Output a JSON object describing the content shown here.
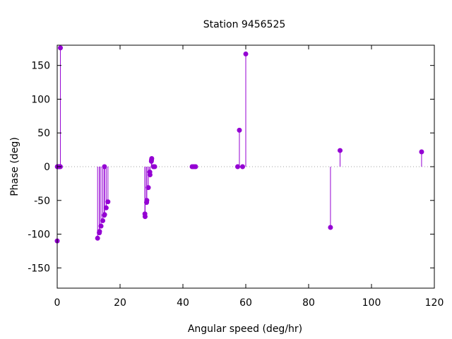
{
  "chart_data": {
    "type": "scatter",
    "style": "impulses-with-points",
    "title": "Station 9456525",
    "xlabel": "Angular speed (deg/hr)",
    "ylabel": "Phase (deg)",
    "xlim": [
      0,
      120
    ],
    "ylim": [
      -180,
      180
    ],
    "xticks": [
      0,
      20,
      40,
      60,
      80,
      100,
      120
    ],
    "yticks": [
      -150,
      -100,
      -50,
      0,
      50,
      100,
      150
    ],
    "grid": false,
    "zero_line": "dotted",
    "series": [
      {
        "color": "#9400d3",
        "points": [
          {
            "x": 0.0,
            "y": -110
          },
          {
            "x": 0.04,
            "y": 0
          },
          {
            "x": 0.08,
            "y": 0
          },
          {
            "x": 0.5,
            "y": 0
          },
          {
            "x": 0.82,
            "y": 0
          },
          {
            "x": 1.0,
            "y": 0
          },
          {
            "x": 1.02,
            "y": 176
          },
          {
            "x": 12.85,
            "y": -106
          },
          {
            "x": 13.4,
            "y": -98
          },
          {
            "x": 13.47,
            "y": -96
          },
          {
            "x": 13.94,
            "y": -88
          },
          {
            "x": 14.5,
            "y": -80
          },
          {
            "x": 14.96,
            "y": -72
          },
          {
            "x": 15.04,
            "y": 0
          },
          {
            "x": 15.08,
            "y": -71
          },
          {
            "x": 15.59,
            "y": -61
          },
          {
            "x": 16.14,
            "y": -52
          },
          {
            "x": 27.9,
            "y": -70
          },
          {
            "x": 27.97,
            "y": -74
          },
          {
            "x": 28.44,
            "y": -53
          },
          {
            "x": 28.51,
            "y": -50
          },
          {
            "x": 28.99,
            "y": -31
          },
          {
            "x": 29.46,
            "y": -8
          },
          {
            "x": 29.53,
            "y": -12
          },
          {
            "x": 29.96,
            "y": 8
          },
          {
            "x": 30.0,
            "y": 10
          },
          {
            "x": 30.08,
            "y": 12
          },
          {
            "x": 30.63,
            "y": 0
          },
          {
            "x": 31.02,
            "y": 0
          },
          {
            "x": 42.93,
            "y": 0
          },
          {
            "x": 43.48,
            "y": 0
          },
          {
            "x": 44.03,
            "y": 0
          },
          {
            "x": 57.42,
            "y": 0
          },
          {
            "x": 57.97,
            "y": 54
          },
          {
            "x": 58.98,
            "y": 0
          },
          {
            "x": 60.0,
            "y": 167
          },
          {
            "x": 86.95,
            "y": -90
          },
          {
            "x": 90.0,
            "y": 24
          },
          {
            "x": 115.94,
            "y": 22
          }
        ]
      }
    ]
  }
}
